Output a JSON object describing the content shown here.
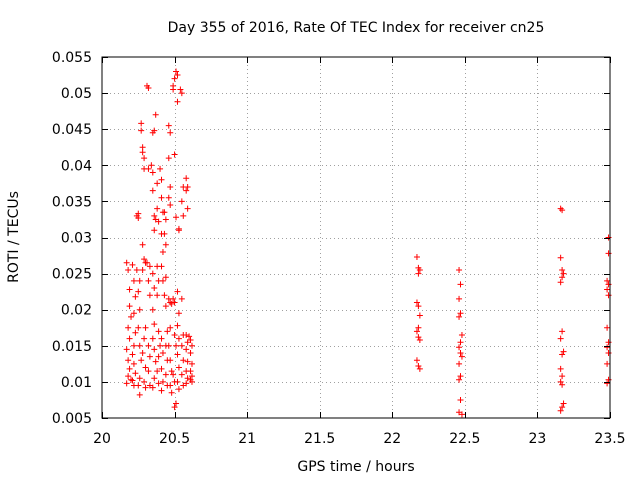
{
  "chart_data": {
    "type": "scatter",
    "title": "Day 355 of 2016, Rate Of TEC Index for receiver cn25",
    "xlabel": "GPS time / hours",
    "ylabel": "ROTI / TECUs",
    "xlim": [
      20,
      23.5
    ],
    "ylim": [
      0.005,
      0.055
    ],
    "xticks": [
      20,
      20.5,
      21,
      21.5,
      22,
      22.5,
      23,
      23.5
    ],
    "xtick_labels": [
      "20",
      "20.5",
      "21",
      "21.5",
      "22",
      "22.5",
      "23",
      "23.5"
    ],
    "yticks": [
      0.005,
      0.01,
      0.015,
      0.02,
      0.025,
      0.03,
      0.035,
      0.04,
      0.045,
      0.05,
      0.055
    ],
    "ytick_labels": [
      "0.005",
      "0.01",
      "0.015",
      "0.02",
      "0.025",
      "0.03",
      "0.035",
      "0.04",
      "0.045",
      "0.05",
      "0.055"
    ],
    "grid": true,
    "marker": "+",
    "color": "#ff0000",
    "series": [
      {
        "name": "ROTI",
        "points": [
          [
            20.17,
            0.0265
          ],
          [
            20.18,
            0.0255
          ],
          [
            20.19,
            0.0228
          ],
          [
            20.19,
            0.0205
          ],
          [
            20.2,
            0.019
          ],
          [
            20.18,
            0.0175
          ],
          [
            20.19,
            0.016
          ],
          [
            20.17,
            0.0145
          ],
          [
            20.18,
            0.013
          ],
          [
            20.19,
            0.0118
          ],
          [
            20.18,
            0.0108
          ],
          [
            20.17,
            0.0098
          ],
          [
            20.2,
            0.0103
          ],
          [
            20.21,
            0.0262
          ],
          [
            20.22,
            0.024
          ],
          [
            20.23,
            0.0218
          ],
          [
            20.22,
            0.0195
          ],
          [
            20.23,
            0.0168
          ],
          [
            20.22,
            0.015
          ],
          [
            20.21,
            0.0138
          ],
          [
            20.22,
            0.0125
          ],
          [
            20.23,
            0.0112
          ],
          [
            20.21,
            0.0102
          ],
          [
            20.22,
            0.0095
          ],
          [
            20.24,
            0.033
          ],
          [
            20.25,
            0.0333
          ],
          [
            20.25,
            0.0327
          ],
          [
            20.24,
            0.0255
          ],
          [
            20.26,
            0.024
          ],
          [
            20.25,
            0.0225
          ],
          [
            20.26,
            0.02
          ],
          [
            20.25,
            0.0175
          ],
          [
            20.26,
            0.015
          ],
          [
            20.27,
            0.013
          ],
          [
            20.26,
            0.0105
          ],
          [
            20.25,
            0.0095
          ],
          [
            20.26,
            0.0082
          ],
          [
            20.27,
            0.0458
          ],
          [
            20.27,
            0.0448
          ],
          [
            20.28,
            0.0425
          ],
          [
            20.28,
            0.0418
          ],
          [
            20.29,
            0.041
          ],
          [
            20.29,
            0.0395
          ],
          [
            20.28,
            0.029
          ],
          [
            20.29,
            0.027
          ],
          [
            20.3,
            0.0265
          ],
          [
            20.28,
            0.0255
          ],
          [
            20.3,
            0.0175
          ],
          [
            20.29,
            0.016
          ],
          [
            20.28,
            0.014
          ],
          [
            20.3,
            0.012
          ],
          [
            20.29,
            0.01
          ],
          [
            20.3,
            0.0092
          ],
          [
            20.31,
            0.051
          ],
          [
            20.32,
            0.0507
          ],
          [
            20.32,
            0.0395
          ],
          [
            20.31,
            0.0265
          ],
          [
            20.33,
            0.026
          ],
          [
            20.32,
            0.024
          ],
          [
            20.33,
            0.022
          ],
          [
            20.32,
            0.015
          ],
          [
            20.33,
            0.0135
          ],
          [
            20.32,
            0.0115
          ],
          [
            20.33,
            0.0095
          ],
          [
            20.35,
            0.0445
          ],
          [
            20.36,
            0.0448
          ],
          [
            20.34,
            0.04
          ],
          [
            20.35,
            0.039
          ],
          [
            20.35,
            0.0365
          ],
          [
            20.36,
            0.033
          ],
          [
            20.37,
            0.0325
          ],
          [
            20.36,
            0.031
          ],
          [
            20.35,
            0.025
          ],
          [
            20.36,
            0.023
          ],
          [
            20.35,
            0.02
          ],
          [
            20.36,
            0.018
          ],
          [
            20.35,
            0.016
          ],
          [
            20.36,
            0.0145
          ],
          [
            20.37,
            0.0128
          ],
          [
            20.36,
            0.0105
          ],
          [
            20.35,
            0.0092
          ],
          [
            20.37,
            0.047
          ],
          [
            20.38,
            0.0375
          ],
          [
            20.38,
            0.034
          ],
          [
            20.39,
            0.0322
          ],
          [
            20.38,
            0.026
          ],
          [
            20.39,
            0.024
          ],
          [
            20.38,
            0.022
          ],
          [
            20.39,
            0.017
          ],
          [
            20.4,
            0.015
          ],
          [
            20.39,
            0.0135
          ],
          [
            20.38,
            0.0115
          ],
          [
            20.39,
            0.0098
          ],
          [
            20.4,
            0.0395
          ],
          [
            20.41,
            0.038
          ],
          [
            20.41,
            0.0355
          ],
          [
            20.42,
            0.0335
          ],
          [
            20.41,
            0.0305
          ],
          [
            20.42,
            0.028
          ],
          [
            20.41,
            0.026
          ],
          [
            20.42,
            0.024
          ],
          [
            20.41,
            0.016
          ],
          [
            20.42,
            0.014
          ],
          [
            20.41,
            0.0118
          ],
          [
            20.42,
            0.01
          ],
          [
            20.41,
            0.0088
          ],
          [
            20.43,
            0.0335
          ],
          [
            20.44,
            0.0325
          ],
          [
            20.43,
            0.0305
          ],
          [
            20.44,
            0.029
          ],
          [
            20.44,
            0.0245
          ],
          [
            20.43,
            0.022
          ],
          [
            20.44,
            0.0205
          ],
          [
            20.45,
            0.017
          ],
          [
            20.44,
            0.015
          ],
          [
            20.45,
            0.013
          ],
          [
            20.44,
            0.011
          ],
          [
            20.45,
            0.0095
          ],
          [
            20.46,
            0.0455
          ],
          [
            20.47,
            0.0445
          ],
          [
            20.46,
            0.041
          ],
          [
            20.47,
            0.037
          ],
          [
            20.46,
            0.0355
          ],
          [
            20.47,
            0.0345
          ],
          [
            20.46,
            0.0215
          ],
          [
            20.47,
            0.021
          ],
          [
            20.48,
            0.0208
          ],
          [
            20.47,
            0.0175
          ],
          [
            20.46,
            0.015
          ],
          [
            20.47,
            0.013
          ],
          [
            20.48,
            0.0115
          ],
          [
            20.47,
            0.0095
          ],
          [
            20.48,
            0.0085
          ],
          [
            20.49,
            0.051
          ],
          [
            20.5,
            0.052
          ],
          [
            20.49,
            0.0505
          ],
          [
            20.5,
            0.0415
          ],
          [
            20.51,
            0.0328
          ],
          [
            20.49,
            0.0215
          ],
          [
            20.5,
            0.021
          ],
          [
            20.5,
            0.0165
          ],
          [
            20.51,
            0.015
          ],
          [
            20.49,
            0.011
          ],
          [
            20.5,
            0.01
          ],
          [
            20.51,
            0.007
          ],
          [
            20.5,
            0.0065
          ],
          [
            20.51,
            0.053
          ],
          [
            20.52,
            0.0525
          ],
          [
            20.52,
            0.0488
          ],
          [
            20.53,
            0.0312
          ],
          [
            20.53,
            0.031
          ],
          [
            20.52,
            0.0225
          ],
          [
            20.53,
            0.0195
          ],
          [
            20.52,
            0.0178
          ],
          [
            20.53,
            0.016
          ],
          [
            20.52,
            0.0138
          ],
          [
            20.53,
            0.012
          ],
          [
            20.52,
            0.01
          ],
          [
            20.53,
            0.009
          ],
          [
            20.54,
            0.0505
          ],
          [
            20.55,
            0.05
          ],
          [
            20.56,
            0.037
          ],
          [
            20.55,
            0.035
          ],
          [
            20.56,
            0.033
          ],
          [
            20.55,
            0.0215
          ],
          [
            20.56,
            0.0165
          ],
          [
            20.55,
            0.015
          ],
          [
            20.56,
            0.013
          ],
          [
            20.55,
            0.011
          ],
          [
            20.56,
            0.0095
          ],
          [
            20.58,
            0.0382
          ],
          [
            20.59,
            0.037
          ],
          [
            20.58,
            0.0365
          ],
          [
            20.59,
            0.034
          ],
          [
            20.58,
            0.0165
          ],
          [
            20.59,
            0.0155
          ],
          [
            20.58,
            0.0145
          ],
          [
            20.59,
            0.0128
          ],
          [
            20.58,
            0.0115
          ],
          [
            20.59,
            0.0105
          ],
          [
            20.58,
            0.0098
          ],
          [
            20.6,
            0.0163
          ],
          [
            20.61,
            0.0158
          ],
          [
            20.62,
            0.015
          ],
          [
            20.61,
            0.014
          ],
          [
            20.62,
            0.0125
          ],
          [
            20.61,
            0.0115
          ],
          [
            20.62,
            0.0108
          ],
          [
            20.61,
            0.0103
          ],
          [
            20.62,
            0.01
          ],
          [
            22.17,
            0.0273
          ],
          [
            22.18,
            0.0258
          ],
          [
            22.19,
            0.0255
          ],
          [
            22.18,
            0.025
          ],
          [
            22.17,
            0.021
          ],
          [
            22.18,
            0.0205
          ],
          [
            22.19,
            0.0192
          ],
          [
            22.18,
            0.0175
          ],
          [
            22.17,
            0.017
          ],
          [
            22.18,
            0.0162
          ],
          [
            22.19,
            0.0158
          ],
          [
            22.17,
            0.013
          ],
          [
            22.18,
            0.0122
          ],
          [
            22.19,
            0.0118
          ],
          [
            22.46,
            0.0255
          ],
          [
            22.47,
            0.0235
          ],
          [
            22.46,
            0.0215
          ],
          [
            22.47,
            0.0195
          ],
          [
            22.46,
            0.019
          ],
          [
            22.48,
            0.0165
          ],
          [
            22.47,
            0.0155
          ],
          [
            22.46,
            0.0148
          ],
          [
            22.47,
            0.014
          ],
          [
            22.48,
            0.0135
          ],
          [
            22.46,
            0.0125
          ],
          [
            22.47,
            0.0108
          ],
          [
            22.46,
            0.0103
          ],
          [
            22.47,
            0.0075
          ],
          [
            22.46,
            0.0058
          ],
          [
            22.48,
            0.0055
          ],
          [
            23.16,
            0.034
          ],
          [
            23.17,
            0.0338
          ],
          [
            23.16,
            0.0272
          ],
          [
            23.17,
            0.0255
          ],
          [
            23.18,
            0.025
          ],
          [
            23.17,
            0.0245
          ],
          [
            23.16,
            0.0238
          ],
          [
            23.17,
            0.017
          ],
          [
            23.16,
            0.016
          ],
          [
            23.18,
            0.0142
          ],
          [
            23.17,
            0.0138
          ],
          [
            23.16,
            0.0118
          ],
          [
            23.17,
            0.0108
          ],
          [
            23.16,
            0.01
          ],
          [
            23.17,
            0.0096
          ],
          [
            23.18,
            0.007
          ],
          [
            23.17,
            0.0065
          ],
          [
            23.16,
            0.006
          ],
          [
            23.49,
            0.03
          ],
          [
            23.49,
            0.0278
          ],
          [
            23.48,
            0.024
          ],
          [
            23.49,
            0.0235
          ],
          [
            23.48,
            0.0228
          ],
          [
            23.49,
            0.022
          ],
          [
            23.48,
            0.0175
          ],
          [
            23.49,
            0.0155
          ],
          [
            23.48,
            0.0148
          ],
          [
            23.49,
            0.014
          ],
          [
            23.48,
            0.0125
          ],
          [
            23.49,
            0.0103
          ],
          [
            23.48,
            0.0098
          ]
        ]
      }
    ]
  }
}
